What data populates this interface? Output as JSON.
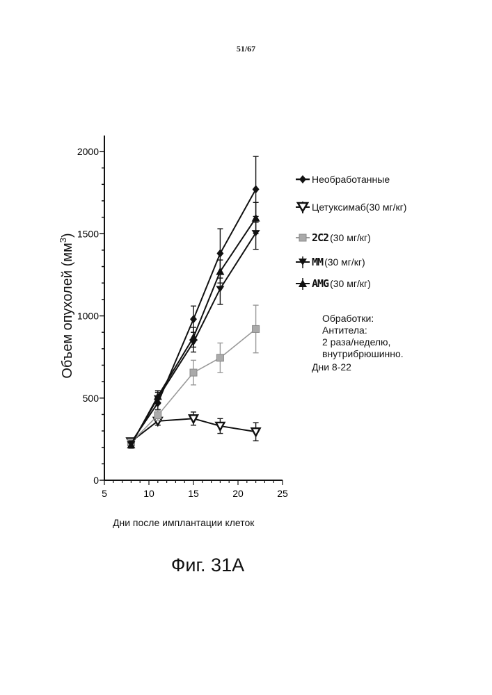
{
  "page_number": "51/67",
  "figure_caption": "Фиг. 31А",
  "notes": {
    "line1": "Обработки:",
    "line2": "Антитела:",
    "line3": "2 раза/неделю,",
    "line4": "внутрибрюшинно.",
    "line5": "Дни 8-22"
  },
  "legend_labels": {
    "untreated_name": "Необработанные",
    "untreated_dose": "",
    "cetuximab_name": "Цетуксимаб",
    "cetuximab_dose": " (30 мг/кг)",
    "c2c2_name": "2C2",
    "c2c2_dose": " (30 мг/кг)",
    "mm_name": "MM",
    "mm_dose": " (30 мг/кг)",
    "amg_name": "AMG",
    "amg_dose": "(30 мг/кг)"
  },
  "chart_data": {
    "type": "line",
    "title": "",
    "xlabel": "Дни после имплантации клеток",
    "ylabel": "Объем опухолей (мм",
    "ylabel_sup": "3",
    "ylabel_end": ")",
    "xlim": [
      5,
      25
    ],
    "ylim": [
      0,
      2000
    ],
    "xticks": [
      5,
      10,
      15,
      20,
      25
    ],
    "yticks": [
      0,
      500,
      1000,
      1500,
      2000
    ],
    "grid": false,
    "legend_position": "right",
    "series": [
      {
        "name": "Необработанные",
        "marker": "diamond",
        "color": "#111111",
        "x": [
          8,
          11,
          15,
          18,
          22
        ],
        "y": [
          230,
          470,
          980,
          1380,
          1770
        ],
        "err": [
          20,
          40,
          80,
          150,
          200
        ]
      },
      {
        "name": "Цетуксимаб (30 мг/кг)",
        "marker": "triangle-down-open",
        "color": "#111111",
        "x": [
          8,
          11,
          15,
          18,
          22
        ],
        "y": [
          235,
          360,
          375,
          330,
          295
        ],
        "err": [
          20,
          25,
          40,
          45,
          55
        ]
      },
      {
        "name": "2C2 (30 мг/кг)",
        "marker": "square",
        "color": "#999999",
        "x": [
          8,
          11,
          15,
          18,
          22
        ],
        "y": [
          230,
          395,
          655,
          745,
          920
        ],
        "err": [
          20,
          30,
          75,
          90,
          145
        ]
      },
      {
        "name": "MM (30 мг/кг)",
        "marker": "triangle-down",
        "color": "#111111",
        "x": [
          8,
          11,
          15,
          18,
          22
        ],
        "y": [
          220,
          500,
          840,
          1165,
          1505
        ],
        "err": [
          20,
          35,
          60,
          95,
          100
        ]
      },
      {
        "name": "AMG (30 мг/кг)",
        "marker": "triangle-up",
        "color": "#111111",
        "x": [
          8,
          11,
          15,
          18,
          22
        ],
        "y": [
          215,
          510,
          870,
          1270,
          1595
        ],
        "err": [
          20,
          35,
          60,
          70,
          95
        ]
      }
    ]
  }
}
